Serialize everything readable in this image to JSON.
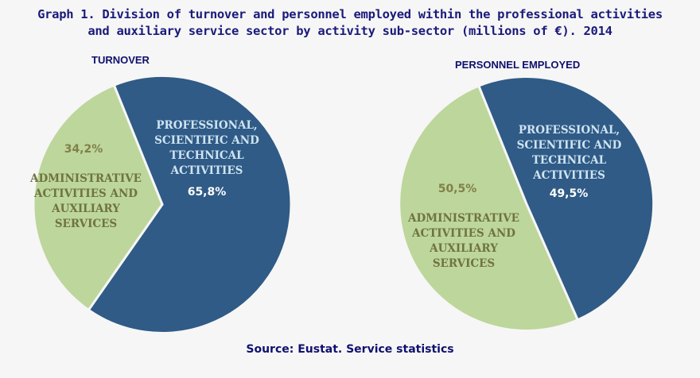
{
  "title_line1": "Graph 1. Division of turnover and personnel employed within the professional activities",
  "title_line2": "and auxiliary service sector by activity sub-sector (millions of €). 2014",
  "source": "Source: Eustat. Service statistics",
  "chart_data": [
    {
      "type": "pie",
      "title": "TURNOVER",
      "categories": [
        "PROFESSIONAL, SCIENTIFIC AND TECHNICAL ACTIVITIES",
        "ADMINISTRATIVE ACTIVITIES AND AUXILIARY SERVICES"
      ],
      "values": [
        65.8,
        34.2
      ],
      "value_labels": [
        "65,8%",
        "34,2%"
      ],
      "colors": [
        "#2f5b86",
        "#bdd69b"
      ]
    },
    {
      "type": "pie",
      "title": "PERSONNEL EMPLOYED",
      "categories": [
        "PROFESSIONAL, SCIENTIFIC AND TECHNICAL ACTIVITIES",
        "ADMINISTRATIVE ACTIVITIES AND AUXILIARY SERVICES"
      ],
      "values": [
        49.5,
        50.5
      ],
      "value_labels": [
        "49,5%",
        "50,5%"
      ],
      "colors": [
        "#2f5b86",
        "#bdd69b"
      ]
    }
  ]
}
